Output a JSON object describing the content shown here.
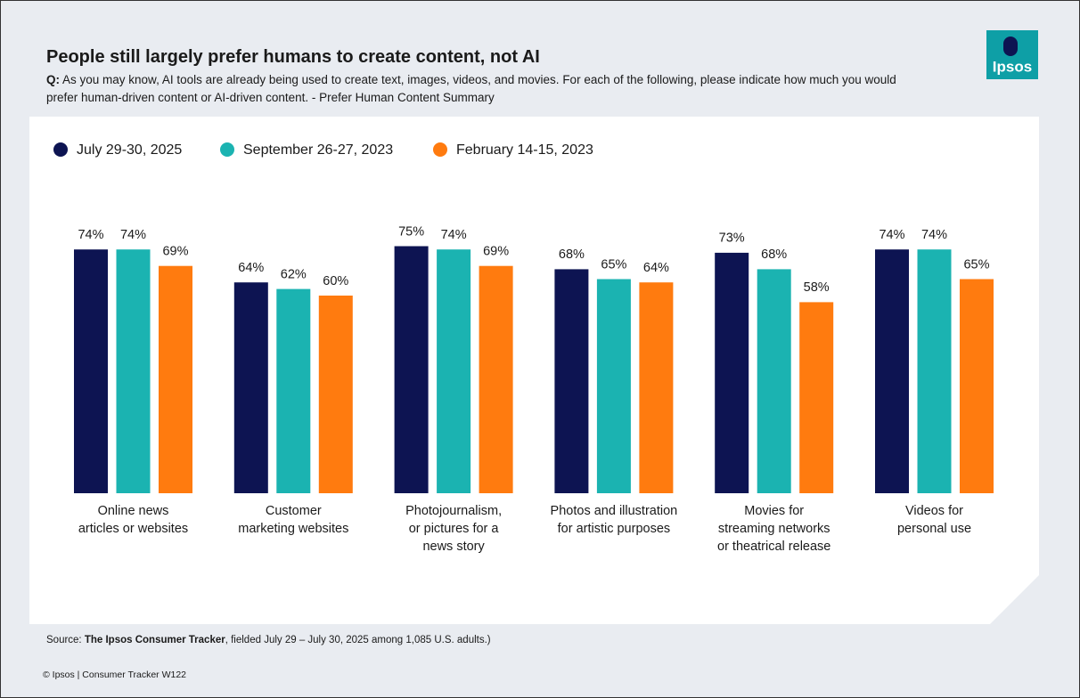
{
  "header": {
    "title": "People still largely prefer humans to create content, not AI",
    "question_label": "Q:",
    "question": "As you may know, AI tools are already being used to create text, images, videos, and movies. For each of the following, please indicate how much you would prefer human-driven content or AI-driven content. - Prefer Human Content Summary",
    "logo": "Ipsos"
  },
  "chart_data": {
    "type": "bar",
    "categories": [
      "Online news\narticles or websites",
      "Customer\nmarketing websites",
      "Photojournalism,\nor pictures for a\nnews story",
      "Photos and illustration\nfor artistic purposes",
      "Movies for\nstreaming networks\nor theatrical release",
      "Videos for\npersonal use"
    ],
    "series": [
      {
        "name": "July 29-30, 2025",
        "color": "#0d1452",
        "values": [
          74,
          64,
          75,
          68,
          73,
          74
        ],
        "value_labels": [
          "74%",
          "64%",
          "75%",
          "68%",
          "73%",
          "74%"
        ]
      },
      {
        "name": "September 26-27, 2023",
        "color": "#1bb3b1",
        "values": [
          74,
          62,
          74,
          65,
          68,
          74
        ],
        "value_labels": [
          "74%",
          "62%",
          "74%",
          "65%",
          "68%",
          "74%"
        ]
      },
      {
        "name": "February 14-15, 2023",
        "color": "#ff7b0f",
        "values": [
          69,
          60,
          69,
          64,
          58,
          65
        ],
        "value_labels": [
          "69%",
          "60%",
          "69%",
          "64%",
          "58%",
          "65%"
        ]
      }
    ],
    "legend": "top-left"
  },
  "footer": {
    "source_label": "Source:",
    "source_name": "The Ipsos Consumer Tracker",
    "source_rest": ", fielded July 29 – July 30, 2025 among 1,085 U.S. adults.)",
    "copyright": "© Ipsos | Consumer Tracker W122"
  }
}
